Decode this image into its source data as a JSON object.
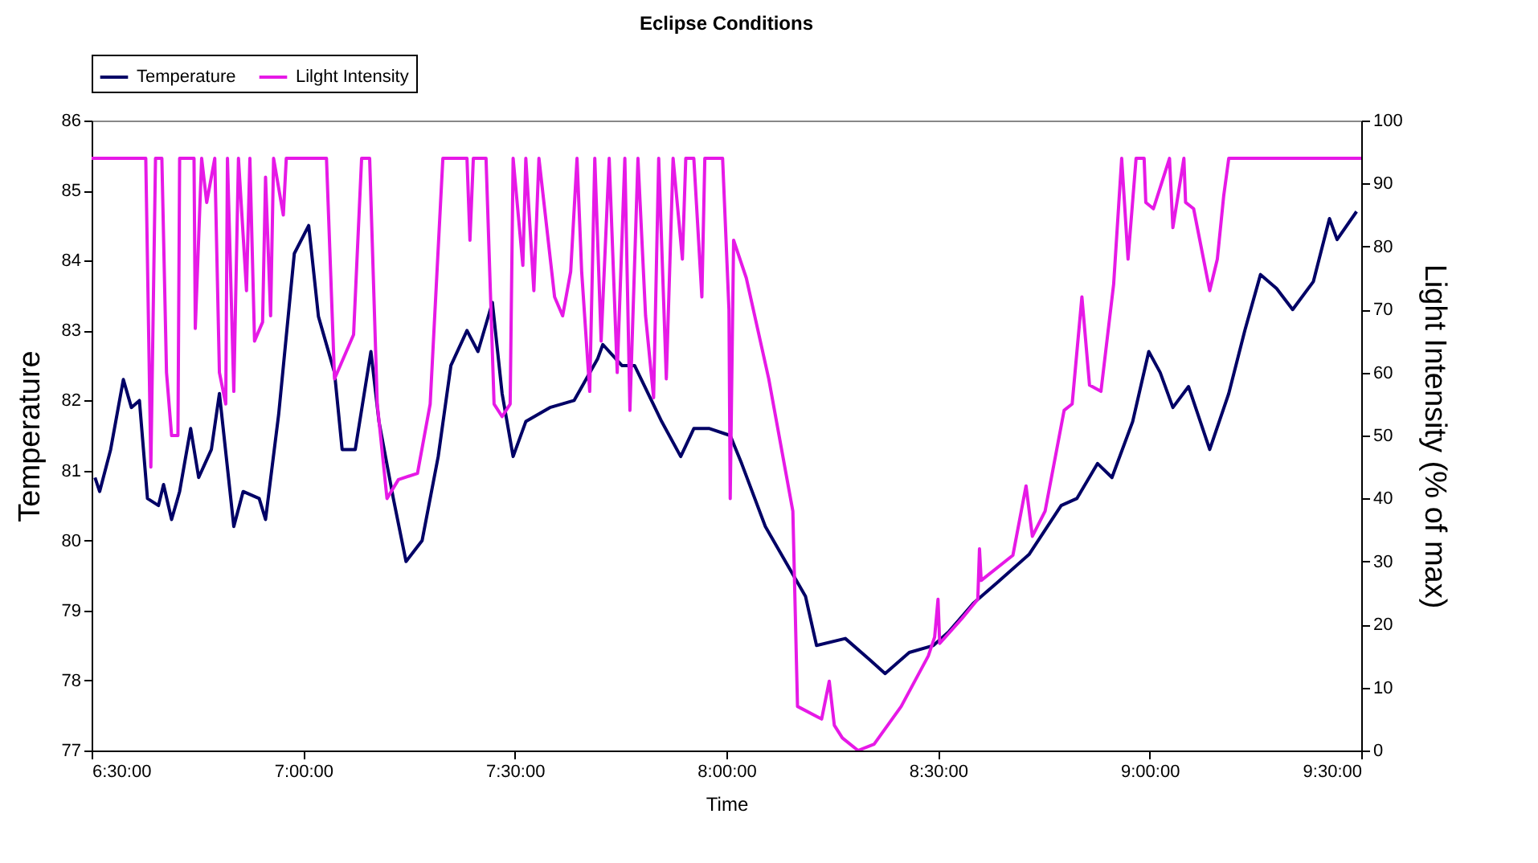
{
  "chart_data": {
    "type": "line",
    "title": "Eclipse Conditions",
    "xlabel": "Time",
    "ylabel": "Temperature",
    "y2label": "Light Intensity (% of max)",
    "legend": "top",
    "xlim": [
      6.5,
      9.5
    ],
    "xticks": [
      {
        "value": 6.5,
        "label": "6:30:00"
      },
      {
        "value": 7,
        "label": "7:00:00"
      },
      {
        "value": 7.5,
        "label": "7:30:00"
      },
      {
        "value": 8,
        "label": "8:00:00"
      },
      {
        "value": 8.5,
        "label": "8:30:00"
      },
      {
        "value": 9,
        "label": "9:00:00"
      },
      {
        "value": 9.5,
        "label": "9:30:00"
      }
    ],
    "ylim": [
      77,
      86
    ],
    "yticks": [
      77,
      78,
      79,
      80,
      81,
      82,
      83,
      84,
      85,
      86
    ],
    "y2lim": [
      0,
      100
    ],
    "y2ticks": [
      0,
      10,
      20,
      30,
      40,
      50,
      60,
      70,
      80,
      90,
      100
    ],
    "series": [
      {
        "name": "Temperature",
        "color": "#000066",
        "x": [
          6.508,
          6.519,
          6.545,
          6.575,
          6.594,
          6.613,
          6.632,
          6.658,
          6.67,
          6.689,
          6.708,
          6.734,
          6.753,
          6.783,
          6.802,
          6.836,
          6.858,
          6.896,
          6.911,
          6.942,
          6.979,
          7.013,
          7.036,
          7.074,
          7.092,
          7.123,
          7.16,
          7.179,
          7.213,
          7.243,
          7.281,
          7.319,
          7.349,
          7.387,
          7.413,
          7.447,
          7.47,
          7.496,
          7.526,
          7.583,
          7.64,
          7.696,
          7.708,
          7.753,
          7.783,
          7.847,
          7.892,
          7.923,
          7.96,
          8.009,
          8.036,
          8.092,
          8.149,
          8.187,
          8.213,
          8.281,
          8.338,
          8.375,
          8.432,
          8.489,
          8.526,
          8.583,
          8.64,
          8.715,
          8.791,
          8.828,
          8.877,
          8.911,
          8.96,
          8.998,
          9.025,
          9.055,
          9.092,
          9.142,
          9.187,
          9.225,
          9.262,
          9.3,
          9.338,
          9.387,
          9.425,
          9.443,
          9.489
        ],
        "values": [
          80.9,
          80.7,
          81.3,
          82.3,
          81.9,
          82.0,
          80.6,
          80.5,
          80.8,
          80.3,
          80.7,
          81.6,
          80.9,
          81.3,
          82.1,
          80.2,
          80.7,
          80.6,
          80.3,
          81.8,
          84.1,
          84.5,
          83.2,
          82.4,
          81.3,
          81.3,
          82.7,
          81.7,
          80.6,
          79.7,
          80.0,
          81.2,
          82.5,
          83.0,
          82.7,
          83.4,
          82.1,
          81.2,
          81.7,
          81.9,
          82.0,
          82.6,
          82.8,
          82.5,
          82.5,
          81.7,
          81.2,
          81.6,
          81.6,
          81.5,
          81.1,
          80.2,
          79.6,
          79.2,
          78.5,
          78.6,
          78.3,
          78.1,
          78.4,
          78.5,
          78.7,
          79.1,
          79.4,
          79.8,
          80.5,
          80.6,
          81.1,
          80.9,
          81.7,
          82.7,
          82.4,
          81.9,
          82.2,
          81.3,
          82.1,
          83.0,
          83.8,
          83.6,
          83.3,
          83.7,
          84.6,
          84.3,
          84.7
        ]
      },
      {
        "name": "Lilght Intensity",
        "color": "#e619e6",
        "axis": "y2",
        "x": [
          6.5,
          6.628,
          6.64,
          6.651,
          6.666,
          6.677,
          6.689,
          6.704,
          6.708,
          6.742,
          6.745,
          6.76,
          6.772,
          6.791,
          6.802,
          6.817,
          6.821,
          6.836,
          6.847,
          6.866,
          6.874,
          6.885,
          6.904,
          6.911,
          6.923,
          6.93,
          6.953,
          6.96,
          7.055,
          7.074,
          7.119,
          7.138,
          7.157,
          7.175,
          7.198,
          7.225,
          7.27,
          7.3,
          7.33,
          7.387,
          7.394,
          7.402,
          7.432,
          7.451,
          7.47,
          7.489,
          7.496,
          7.519,
          7.526,
          7.545,
          7.557,
          7.594,
          7.613,
          7.632,
          7.647,
          7.658,
          7.677,
          7.689,
          7.704,
          7.723,
          7.742,
          7.76,
          7.772,
          7.791,
          7.809,
          7.828,
          7.84,
          7.858,
          7.874,
          7.896,
          7.904,
          7.923,
          7.942,
          7.949,
          7.991,
          8.006,
          8.009,
          8.017,
          8.047,
          8.1,
          8.157,
          8.168,
          8.225,
          8.243,
          8.255,
          8.274,
          8.311,
          8.349,
          8.413,
          8.477,
          8.492,
          8.5,
          8.504,
          8.557,
          8.594,
          8.598,
          8.602,
          8.677,
          8.708,
          8.723,
          8.753,
          8.798,
          8.817,
          8.84,
          8.858,
          8.885,
          8.915,
          8.934,
          8.949,
          8.968,
          8.987,
          8.991,
          9.009,
          9.047,
          9.055,
          9.081,
          9.085,
          9.104,
          9.142,
          9.16,
          9.175,
          9.187,
          9.5
        ],
        "values": [
          94,
          94,
          45,
          94,
          94,
          60,
          50,
          50,
          94,
          94,
          67,
          94,
          87,
          94,
          60,
          55,
          94,
          57,
          94,
          73,
          94,
          65,
          68,
          91,
          69,
          94,
          85,
          94,
          94,
          59,
          66,
          94,
          94,
          55,
          40,
          43,
          44,
          55,
          94,
          94,
          81,
          94,
          94,
          55,
          53,
          55,
          94,
          77,
          94,
          73,
          94,
          72,
          69,
          76,
          94,
          76,
          57,
          94,
          65,
          94,
          60,
          94,
          54,
          94,
          69,
          56,
          94,
          59,
          94,
          78,
          94,
          94,
          72,
          94,
          94,
          70,
          40,
          81,
          75,
          59,
          38,
          7,
          5,
          11,
          4,
          2,
          0,
          1,
          7,
          15,
          18,
          24,
          17,
          21,
          24,
          32,
          27,
          31,
          42,
          34,
          38,
          54,
          55,
          72,
          58,
          57,
          74,
          94,
          78,
          94,
          94,
          87,
          86,
          94,
          83,
          94,
          87,
          86,
          73,
          78,
          88,
          94,
          94
        ]
      }
    ]
  }
}
